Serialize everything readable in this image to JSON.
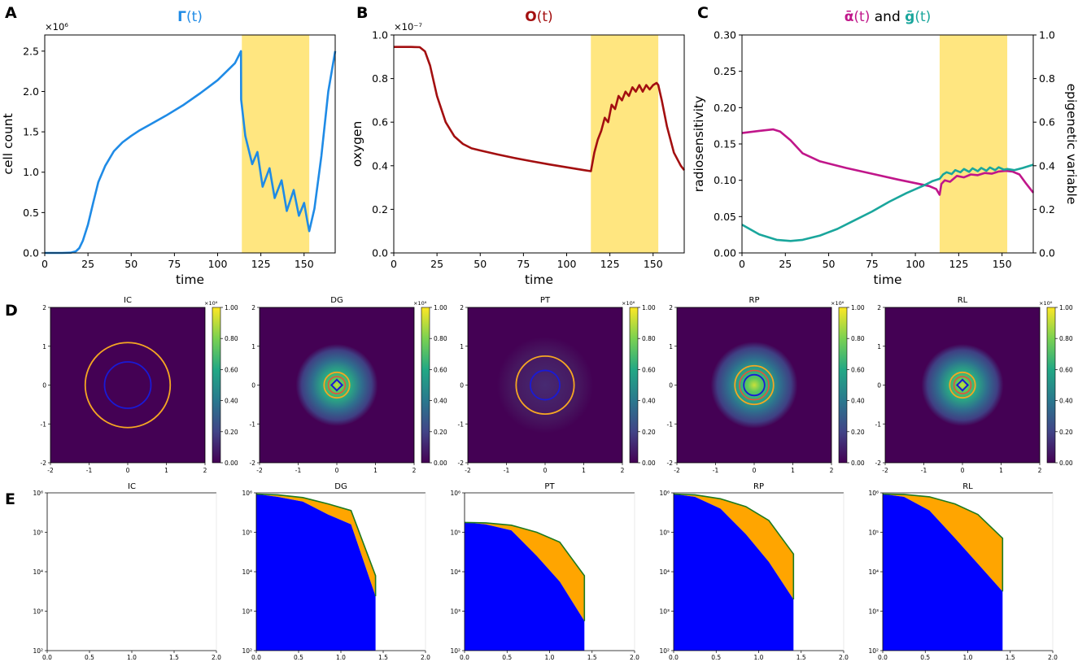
{
  "panel_labels": [
    "A",
    "B",
    "C",
    "D",
    "E"
  ],
  "colors": {
    "gamma": "#1f8be6",
    "oxygen": "#a30f10",
    "alpha": "#c0168a",
    "g": "#1aa69c",
    "shade": "#ffe680",
    "contour_outer": "#f5a623",
    "contour_mid": "#e8503a",
    "contour_inner": "#1a1ad6",
    "fill_blue": "#0000ff",
    "fill_orange": "#ffa500",
    "edge_green": "#1e7a1e"
  },
  "chart_data": [
    {
      "id": "A",
      "type": "line",
      "title": "Γ(t)",
      "title_parts": [
        "Γ",
        "(t)"
      ],
      "xlabel": "time",
      "ylabel": "cell count",
      "multiplier": "×10⁶",
      "xlim": [
        0,
        168
      ],
      "ylim": [
        0,
        2.7
      ],
      "xticks": [
        0,
        25,
        50,
        75,
        100,
        125,
        150
      ],
      "yticks": [
        0.0,
        0.5,
        1.0,
        1.5,
        2.0,
        2.5
      ],
      "yticklabels": [
        "0.0",
        "0.5",
        "1.0",
        "1.5",
        "2.0",
        "2.5"
      ],
      "shade": [
        114,
        153
      ],
      "series": [
        {
          "name": "Gamma",
          "x": [
            0,
            10,
            15,
            18,
            20,
            22,
            25,
            28,
            31,
            35,
            40,
            45,
            50,
            55,
            60,
            70,
            80,
            90,
            100,
            110,
            113.5,
            113.6,
            116,
            120,
            123,
            126,
            130,
            133,
            137,
            140,
            144,
            147,
            150,
            152,
            153,
            156,
            160,
            164,
            168
          ],
          "y": [
            0,
            0,
            0.003,
            0.02,
            0.06,
            0.15,
            0.35,
            0.62,
            0.88,
            1.08,
            1.26,
            1.37,
            1.45,
            1.52,
            1.58,
            1.7,
            1.83,
            1.98,
            2.14,
            2.35,
            2.5,
            1.9,
            1.45,
            1.1,
            1.25,
            0.82,
            1.05,
            0.68,
            0.9,
            0.52,
            0.78,
            0.46,
            0.62,
            0.38,
            0.27,
            0.55,
            1.2,
            2.0,
            2.5
          ]
        }
      ]
    },
    {
      "id": "B",
      "type": "line",
      "title": "O(t)",
      "title_parts": [
        "O",
        "(t)"
      ],
      "xlabel": "time",
      "ylabel": "oxygen",
      "multiplier": "×10⁻⁷",
      "xlim": [
        0,
        168
      ],
      "ylim": [
        0,
        1.0
      ],
      "xticks": [
        0,
        25,
        50,
        75,
        100,
        125,
        150
      ],
      "yticks": [
        0.0,
        0.2,
        0.4,
        0.6,
        0.8,
        1.0
      ],
      "yticklabels": [
        "0.0",
        "0.2",
        "0.4",
        "0.6",
        "0.8",
        "1.0"
      ],
      "shade": [
        114,
        153
      ],
      "series": [
        {
          "name": "Oxygen",
          "x": [
            0,
            10,
            15,
            18,
            21,
            25,
            30,
            35,
            40,
            45,
            50,
            60,
            70,
            80,
            90,
            100,
            110,
            114,
            116,
            118,
            120,
            122,
            124,
            126,
            128,
            130,
            132,
            134,
            136,
            138,
            140,
            142,
            144,
            146,
            148,
            150,
            152,
            153,
            155,
            158,
            162,
            166,
            168
          ],
          "y": [
            0.945,
            0.945,
            0.944,
            0.925,
            0.86,
            0.72,
            0.6,
            0.535,
            0.5,
            0.48,
            0.47,
            0.452,
            0.435,
            0.42,
            0.406,
            0.393,
            0.38,
            0.375,
            0.46,
            0.52,
            0.56,
            0.62,
            0.6,
            0.68,
            0.66,
            0.72,
            0.7,
            0.74,
            0.72,
            0.76,
            0.74,
            0.77,
            0.74,
            0.77,
            0.75,
            0.77,
            0.78,
            0.77,
            0.7,
            0.58,
            0.46,
            0.4,
            0.38
          ]
        }
      ]
    },
    {
      "id": "C",
      "type": "line",
      "title": "ᾱ(t) and ḡ(t)",
      "title_parts": [
        "ᾱ",
        "(t)",
        "and",
        "ḡ",
        "(t)"
      ],
      "xlabel": "time",
      "ylabel": "radiosensitivity",
      "ylabel_right": "epigenetic variable",
      "xlim": [
        0,
        168
      ],
      "ylim": [
        0,
        0.3
      ],
      "ylim_right": [
        0,
        1.0
      ],
      "xticks": [
        0,
        25,
        50,
        75,
        100,
        125,
        150
      ],
      "yticks": [
        0.0,
        0.05,
        0.1,
        0.15,
        0.2,
        0.25,
        0.3
      ],
      "yticklabels": [
        "0.00",
        "0.05",
        "0.10",
        "0.15",
        "0.20",
        "0.25",
        "0.30"
      ],
      "yticks_right": [
        0.0,
        0.2,
        0.4,
        0.6,
        0.8,
        1.0
      ],
      "yticklabels_right": [
        "0.0",
        "0.2",
        "0.4",
        "0.6",
        "0.8",
        "1.0"
      ],
      "shade": [
        114,
        153
      ],
      "series": [
        {
          "name": "alpha",
          "axis": "left",
          "x": [
            0,
            10,
            18,
            22,
            28,
            35,
            45,
            60,
            75,
            90,
            100,
            108,
            112,
            114,
            115,
            117,
            120,
            124,
            128,
            132,
            136,
            140,
            144,
            148,
            152,
            156,
            160,
            164,
            168
          ],
          "y": [
            0.165,
            0.168,
            0.17,
            0.167,
            0.155,
            0.137,
            0.126,
            0.117,
            0.109,
            0.101,
            0.096,
            0.092,
            0.088,
            0.08,
            0.095,
            0.1,
            0.098,
            0.106,
            0.104,
            0.108,
            0.107,
            0.11,
            0.109,
            0.112,
            0.113,
            0.112,
            0.108,
            0.095,
            0.083
          ]
        },
        {
          "name": "g",
          "axis": "right",
          "x": [
            0,
            10,
            20,
            28,
            35,
            45,
            55,
            65,
            75,
            85,
            95,
            105,
            110,
            114,
            116,
            118,
            121,
            123,
            126,
            128,
            131,
            133,
            136,
            138,
            141,
            143,
            146,
            148,
            151,
            153,
            157,
            162,
            168
          ],
          "y": [
            0.13,
            0.085,
            0.06,
            0.055,
            0.06,
            0.08,
            0.11,
            0.15,
            0.19,
            0.235,
            0.275,
            0.31,
            0.33,
            0.34,
            0.36,
            0.37,
            0.362,
            0.38,
            0.37,
            0.385,
            0.372,
            0.388,
            0.375,
            0.39,
            0.377,
            0.392,
            0.38,
            0.393,
            0.382,
            0.385,
            0.38,
            0.39,
            0.405
          ]
        }
      ]
    },
    {
      "id": "D",
      "type": "heatmap",
      "subplots": [
        "IC",
        "DG",
        "PT",
        "RP",
        "RL"
      ],
      "xticks": [
        -2,
        -1,
        0,
        1,
        2
      ],
      "yticks": [
        -2,
        -1,
        0,
        1,
        2
      ],
      "colorbar_ticks": [
        "0.00",
        "0.20",
        "0.40",
        "0.60",
        "0.80",
        "1.00"
      ],
      "colorbar_multiplier": "×10⁶",
      "field_peak": [
        0.0,
        0.55,
        0.06,
        0.6,
        0.55
      ],
      "field_radius": [
        0.0,
        0.85,
        1.0,
        0.9,
        0.85
      ],
      "contour_outer_r": [
        1.1,
        0.33,
        0.75,
        0.5,
        0.33
      ],
      "contour_mid_r": [
        0.0,
        0.22,
        0.0,
        0.38,
        0.22
      ],
      "contour_inner_r": [
        0.6,
        0.14,
        0.38,
        0.27,
        0.14
      ]
    },
    {
      "id": "E",
      "type": "area",
      "subplots": [
        "IC",
        "DG",
        "PT",
        "RP",
        "RL"
      ],
      "xlim": [
        0,
        2
      ],
      "ylim_log": [
        2,
        6
      ],
      "xticks": [
        "0.0",
        "0.5",
        "1.0",
        "1.5",
        "2.0"
      ],
      "yticks": [
        "10²",
        "10³",
        "10⁴",
        "10⁵",
        "10⁶"
      ],
      "x": [
        0,
        0.25,
        0.55,
        0.85,
        1.12,
        1.41
      ],
      "log_total": [
        [],
        [
          5.97,
          5.95,
          5.88,
          5.72,
          5.55,
          3.9
        ],
        [
          5.25,
          5.24,
          5.18,
          5.0,
          4.75,
          3.9
        ],
        [
          5.97,
          5.95,
          5.85,
          5.65,
          5.3,
          4.45
        ],
        [
          5.97,
          5.96,
          5.9,
          5.72,
          5.45,
          4.85
        ]
      ],
      "log_blue": [
        [],
        [
          5.97,
          5.9,
          5.78,
          5.45,
          5.2,
          3.38
        ],
        [
          5.25,
          5.2,
          5.05,
          4.4,
          3.75,
          2.75
        ],
        [
          5.97,
          5.9,
          5.6,
          4.95,
          4.25,
          3.3
        ],
        [
          5.97,
          5.9,
          5.55,
          4.85,
          4.2,
          3.5
        ]
      ]
    }
  ]
}
